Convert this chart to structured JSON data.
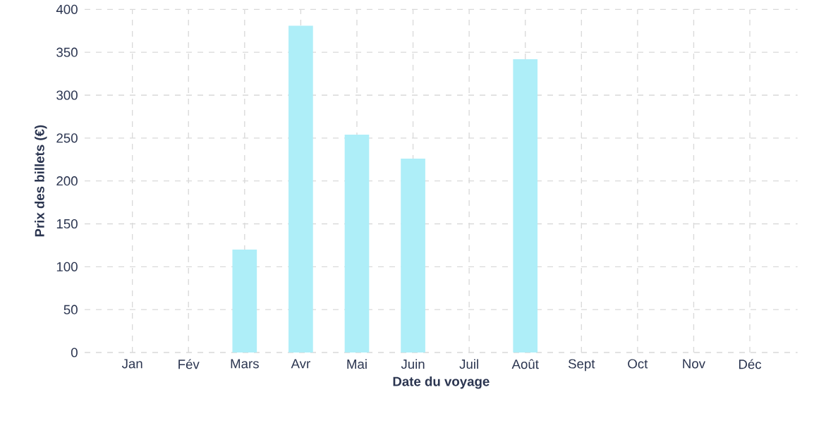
{
  "chart_data": {
    "type": "bar",
    "xlabel": "Date du voyage",
    "ylabel": "Prix des billets (€)",
    "categories": [
      "Jan",
      "Fév",
      "Mars",
      "Avr",
      "Mai",
      "Juin",
      "Juil",
      "Août",
      "Sept",
      "Oct",
      "Nov",
      "Déc"
    ],
    "values": [
      0,
      0,
      120,
      381,
      254,
      226,
      0,
      342,
      0,
      0,
      0,
      0
    ],
    "color": "#aeeef8",
    "ylim": [
      0,
      400
    ],
    "yticks": [
      0,
      50,
      100,
      150,
      200,
      250,
      300,
      350,
      400
    ],
    "grid": true
  }
}
